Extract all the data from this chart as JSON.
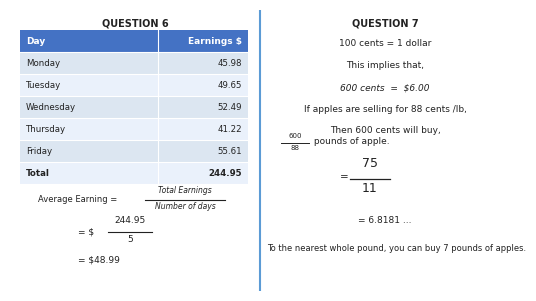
{
  "title_left": "QUESTION 6",
  "title_right": "QUESTION 7",
  "table_headers": [
    "Day",
    "Earnings $"
  ],
  "table_rows": [
    [
      "Monday",
      "45.98"
    ],
    [
      "Tuesday",
      "49.65"
    ],
    [
      "Wednesday",
      "52.49"
    ],
    [
      "Thursday",
      "41.22"
    ],
    [
      "Friday",
      "55.61"
    ],
    [
      "Total",
      "244.95"
    ]
  ],
  "header_bg": "#4472c4",
  "header_text": "#ffffff",
  "row_bg_odd": "#dce6f1",
  "row_bg_even": "#eaf1fb",
  "total_bg": "#dce6f1",
  "q7_lines": [
    "100 cents = 1 dollar",
    "This implies that,",
    "600 cents  =  $6.00",
    "If apples are selling for 88 cents /lb,",
    "Then 600 cents will buy,"
  ],
  "q7_frac1_num": "600",
  "q7_frac1_den": "88",
  "q7_frac1_suffix": " pounds of apple.",
  "q7_frac2_num": "75",
  "q7_frac2_den": "11",
  "q7_decimal": "= 6.8181 ...",
  "q7_final": "To the nearest whole pound, you can buy 7 pounds of apples.",
  "bg_color": "#ffffff",
  "text_color": "#222222",
  "divider_color": "#5b9bd5"
}
